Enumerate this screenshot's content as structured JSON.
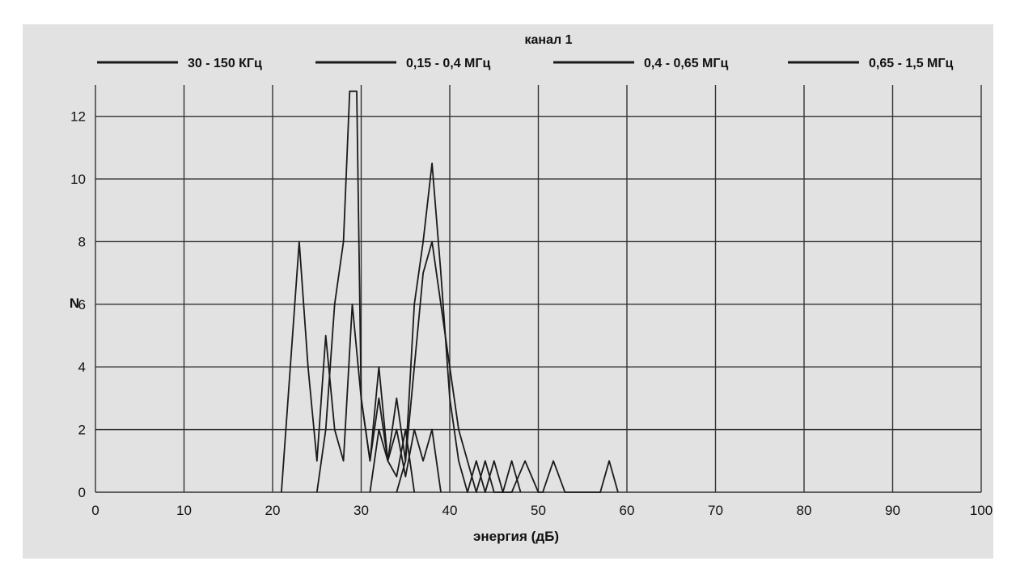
{
  "chart_data": {
    "type": "line",
    "title": "канал 1",
    "xlabel": "энергия (дБ)",
    "ylabel": "N",
    "xlim": [
      0,
      100
    ],
    "ylim": [
      0,
      13
    ],
    "grid": true,
    "legend_position": "top",
    "x_ticks": [
      "0",
      "10",
      "20",
      "30",
      "40",
      "50",
      "60",
      "70",
      "80",
      "90",
      "100"
    ],
    "y_ticks": [
      "0",
      "2",
      "4",
      "6",
      "8",
      "10",
      "12"
    ],
    "series": [
      {
        "name": "30 - 150 КГц",
        "points": [
          [
            21,
            0
          ],
          [
            22,
            4
          ],
          [
            23,
            8
          ],
          [
            24,
            4
          ],
          [
            25,
            1
          ],
          [
            26,
            5
          ],
          [
            27,
            2
          ],
          [
            28,
            1
          ],
          [
            29,
            6
          ],
          [
            30,
            3
          ],
          [
            31,
            1
          ],
          [
            32,
            3
          ],
          [
            33,
            1
          ],
          [
            34,
            0.5
          ],
          [
            35,
            2
          ],
          [
            36,
            0
          ]
        ]
      },
      {
        "name": "0,15 - 0,4 МГц",
        "points": [
          [
            25,
            0
          ],
          [
            26,
            2
          ],
          [
            27,
            6
          ],
          [
            28,
            8
          ],
          [
            28.7,
            12.8
          ],
          [
            29.5,
            12.8
          ],
          [
            30,
            3
          ],
          [
            31,
            1
          ],
          [
            32,
            4
          ],
          [
            33,
            1
          ],
          [
            34,
            2
          ],
          [
            35,
            0.5
          ],
          [
            36,
            2
          ],
          [
            37,
            1
          ],
          [
            38,
            2
          ],
          [
            39,
            0
          ]
        ]
      },
      {
        "name": "0,4 - 0,65 МГц",
        "points": [
          [
            31,
            0
          ],
          [
            32,
            2
          ],
          [
            33,
            1
          ],
          [
            34,
            3
          ],
          [
            35,
            1
          ],
          [
            36,
            6
          ],
          [
            37,
            8
          ],
          [
            38,
            10.5
          ],
          [
            39,
            7
          ],
          [
            40,
            3
          ],
          [
            41,
            1
          ],
          [
            42,
            0
          ],
          [
            43,
            1
          ],
          [
            44,
            0
          ],
          [
            45,
            1
          ],
          [
            46,
            0
          ],
          [
            47,
            1
          ],
          [
            48,
            0
          ]
        ]
      },
      {
        "name": "0,65 - 1,5 МГц",
        "points": [
          [
            34,
            0
          ],
          [
            35,
            1
          ],
          [
            36,
            4
          ],
          [
            37,
            7
          ],
          [
            38,
            8
          ],
          [
            39,
            6
          ],
          [
            40,
            4
          ],
          [
            41,
            2
          ],
          [
            42,
            1
          ],
          [
            43,
            0
          ],
          [
            44,
            1
          ],
          [
            45,
            0
          ],
          [
            47,
            0
          ],
          [
            48.5,
            1
          ],
          [
            50,
            0
          ],
          [
            50.5,
            0
          ],
          [
            51.7,
            1
          ],
          [
            53,
            0
          ],
          [
            56,
            0
          ],
          [
            57,
            0
          ],
          [
            58,
            1
          ],
          [
            59,
            0
          ]
        ]
      }
    ]
  }
}
